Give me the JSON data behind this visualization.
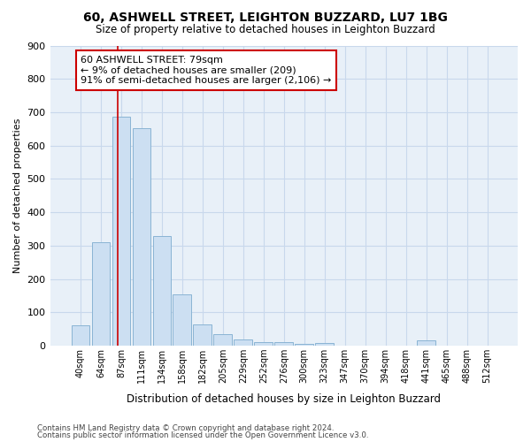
{
  "title1": "60, ASHWELL STREET, LEIGHTON BUZZARD, LU7 1BG",
  "title2": "Size of property relative to detached houses in Leighton Buzzard",
  "xlabel": "Distribution of detached houses by size in Leighton Buzzard",
  "ylabel": "Number of detached properties",
  "bar_color": "#ccdff2",
  "bar_edge_color": "#8ab4d4",
  "categories": [
    "40sqm",
    "64sqm",
    "87sqm",
    "111sqm",
    "134sqm",
    "158sqm",
    "182sqm",
    "205sqm",
    "229sqm",
    "252sqm",
    "276sqm",
    "300sqm",
    "323sqm",
    "347sqm",
    "370sqm",
    "394sqm",
    "418sqm",
    "441sqm",
    "465sqm",
    "488sqm",
    "512sqm"
  ],
  "values": [
    62,
    311,
    686,
    651,
    329,
    153,
    65,
    35,
    18,
    11,
    10,
    6,
    9,
    0,
    0,
    0,
    0,
    15,
    0,
    0,
    0
  ],
  "annotation_text": "60 ASHWELL STREET: 79sqm\n← 9% of detached houses are smaller (209)\n91% of semi-detached houses are larger (2,106) →",
  "annotation_box_color": "#ffffff",
  "annotation_box_edge": "#cc0000",
  "line_color": "#cc0000",
  "footnote1": "Contains HM Land Registry data © Crown copyright and database right 2024.",
  "footnote2": "Contains public sector information licensed under the Open Government Licence v3.0.",
  "ylim": [
    0,
    900
  ],
  "yticks": [
    0,
    100,
    200,
    300,
    400,
    500,
    600,
    700,
    800,
    900
  ],
  "grid_color": "#c8d8ec",
  "background_color": "#e8f0f8",
  "line_bar_index": 2,
  "fig_width": 6.0,
  "fig_height": 5.0,
  "dpi": 100
}
